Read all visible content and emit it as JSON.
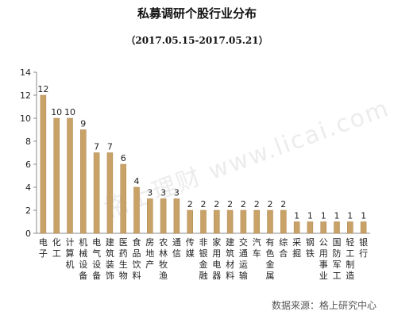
{
  "title": "私募调研个股行业分布",
  "subtitle": "（2017.05.15-2017.05.21）",
  "source": "数据来源：格上研究中心",
  "watermark": "格上理财 www.licai.com",
  "colors": {
    "bar": "#c9a268",
    "bar_stroke": "#a9834a",
    "axis": "#888888"
  },
  "chart_data": {
    "type": "bar",
    "title": "私募调研个股行业分布",
    "subtitle": "（2017.05.15-2017.05.21）",
    "xlabel": "",
    "ylabel": "",
    "ylim": [
      0,
      14
    ],
    "yticks": [
      0,
      2,
      4,
      6,
      8,
      10,
      12,
      14
    ],
    "grid": false,
    "categories": [
      "电子",
      "化工",
      "计算机",
      "机械设备",
      "电气设备",
      "建筑装饰",
      "医药生物",
      "食品饮料",
      "房地产",
      "农林牧渔",
      "通信",
      "传媒",
      "非银金融",
      "家用电器",
      "建筑材料",
      "交通运输",
      "汽车",
      "有色金属",
      "综合",
      "采掘",
      "钢铁",
      "公用事业",
      "国防军工",
      "轻工制造",
      "银行"
    ],
    "values": [
      12,
      10,
      10,
      9,
      7,
      7,
      6,
      4,
      3,
      3,
      3,
      2,
      2,
      2,
      2,
      2,
      2,
      2,
      2,
      1,
      1,
      1,
      1,
      1,
      1
    ]
  }
}
